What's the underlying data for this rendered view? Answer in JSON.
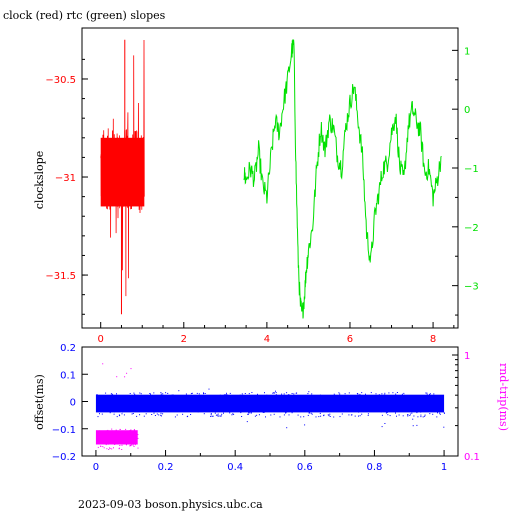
{
  "colors": {
    "clock": "#ff0000",
    "rtc": "#00e000",
    "offset": "#0000ff",
    "roundtrip": "#ff00ff",
    "frame": "#000000"
  },
  "footer": "2023-09-03  boson.physics.ubc.ca",
  "chart_data": [
    {
      "type": "line",
      "title": "clock (red) rtc (green) slopes",
      "ylabel": "clockslope",
      "ylabel_right": "",
      "xlim": [
        -0.45,
        8.6
      ],
      "ylim": [
        -31.77,
        -30.24
      ],
      "y2lim": [
        -3.72,
        1.38
      ],
      "x_ticks": [
        0,
        2,
        4,
        6,
        8
      ],
      "y_ticks": [
        -30.5,
        -31,
        -31.5
      ],
      "y2_ticks": [
        1,
        0,
        -1,
        -2,
        -3
      ],
      "grid": false,
      "series": [
        {
          "name": "clock",
          "axis": "left",
          "style": "dense-noise band",
          "x_range": [
            0.0,
            1.05
          ],
          "center": -30.96,
          "band": [
            -31.15,
            -30.8
          ],
          "spikes_min": -31.7,
          "spikes_max": -30.3
        },
        {
          "name": "rtc",
          "axis": "right",
          "x": [
            3.45,
            3.5,
            3.6,
            3.7,
            3.8,
            3.9,
            4.0,
            4.1,
            4.2,
            4.3,
            4.4,
            4.5,
            4.6,
            4.65,
            4.7,
            4.75,
            4.8,
            4.85,
            4.9,
            4.95,
            5.0,
            5.1,
            5.2,
            5.3,
            5.4,
            5.5,
            5.6,
            5.7,
            5.8,
            5.9,
            6.0,
            6.1,
            6.2,
            6.3,
            6.4,
            6.5,
            6.6,
            6.7,
            6.8,
            6.9,
            7.0,
            7.1,
            7.2,
            7.3,
            7.4,
            7.5,
            7.6,
            7.7,
            7.8,
            7.9,
            8.0,
            8.1,
            8.2
          ],
          "y": [
            -1.1,
            -1.2,
            -1.0,
            -1.2,
            -0.7,
            -1.3,
            -1.5,
            -0.8,
            -0.2,
            -0.4,
            0.1,
            0.5,
            1.0,
            1.1,
            -1.0,
            -2.5,
            -3.3,
            -3.5,
            -3.2,
            -2.7,
            -2.4,
            -2.0,
            -1.0,
            -0.3,
            -0.7,
            -0.2,
            -0.3,
            -0.8,
            -1.0,
            -0.3,
            0.1,
            0.4,
            -0.2,
            -0.8,
            -2.1,
            -2.6,
            -1.8,
            -1.4,
            -1.0,
            -0.9,
            -0.4,
            -0.1,
            -1.0,
            -1.2,
            -0.3,
            0.0,
            -0.2,
            -0.4,
            -1.1,
            -1.0,
            -1.5,
            -1.2,
            -0.8
          ]
        }
      ]
    },
    {
      "type": "scatter",
      "ylabel": "offset(ms)",
      "ylabel_right": "rnd-trip(ms)",
      "xlim": [
        -0.04,
        1.04
      ],
      "ylim": [
        -0.2,
        0.2
      ],
      "y2lim": [
        0.1,
        1.2
      ],
      "y2_scale": "log",
      "x_ticks": [
        "0",
        "0.2",
        "0.4",
        "0.6",
        "0.8",
        "1"
      ],
      "y_ticks": [
        "0.2",
        "0.1",
        "0",
        "-0.1",
        "-0.2"
      ],
      "y2_ticks": [
        "1",
        "0.1"
      ],
      "grid": false,
      "series": [
        {
          "name": "offset",
          "axis": "left",
          "x_range": [
            0.0,
            1.0
          ],
          "center": -0.01,
          "band": [
            -0.04,
            0.025
          ],
          "outliers": [
            -0.1,
            0.06
          ]
        },
        {
          "name": "roundtrip",
          "axis": "right",
          "x_range": [
            0.0,
            0.12
          ],
          "band": [
            0.13,
            0.18
          ],
          "outliers": [
            0.5,
            0.85
          ]
        }
      ]
    }
  ]
}
